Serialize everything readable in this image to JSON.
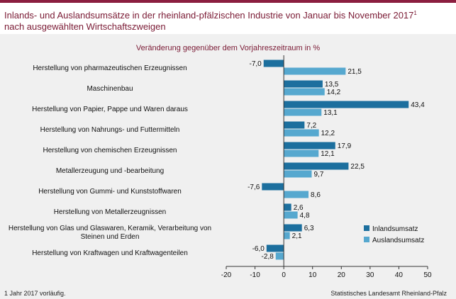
{
  "title_line1": "Inlands- und Auslandsumsätze in der rheinland-pfälzischen Industrie von Januar bis November 2017",
  "title_sup": "1",
  "title_line2": "nach ausgewählten Wirtschaftszweigen",
  "footnote": "1 Jahr 2017 vorläufig.",
  "source": "Statistisches Landesamt Rheinland-Pfalz",
  "colors": {
    "inland": "#1c6f9e",
    "ausland": "#56a8cf",
    "accent": "#8b1e3f",
    "background": "#f0f0f0"
  },
  "chart_data": {
    "type": "bar",
    "orientation": "horizontal",
    "title": "Veränderung gegenüber dem Vorjahreszeitraum in %",
    "categories": [
      "Herstellung von pharmazeutischen Erzeugnissen",
      "Maschinenbau",
      "Herstellung von Papier, Pappe und Waren daraus",
      "Herstellung von Nahrungs- und Futtermitteln",
      "Herstellung von chemischen Erzeugnissen",
      "Metallerzeugung und -bearbeitung",
      "Herstellung von Gummi- und Kunststoffwaren",
      "Herstellung von Metallerzeugnissen",
      "Herstellung von Glas und Glaswaren, Keramik, Verarbeitung von Steinen und Erden",
      "Herstellung von Kraftwagen und Kraftwagenteilen"
    ],
    "series": [
      {
        "name": "Inlandsumsatz",
        "values": [
          -7.0,
          13.5,
          43.4,
          7.2,
          17.9,
          22.5,
          -7.6,
          2.6,
          6.3,
          -6.0
        ],
        "labels": [
          "-7,0",
          "13,5",
          "43,4",
          "7,2",
          "17,9",
          "22,5",
          "-7,6",
          "2,6",
          "6,3",
          "-6,0"
        ]
      },
      {
        "name": "Auslandsumsatz",
        "values": [
          21.5,
          14.2,
          13.1,
          12.2,
          12.1,
          9.7,
          8.6,
          4.8,
          2.1,
          -2.8
        ],
        "labels": [
          "21,5",
          "14,2",
          "13,1",
          "12,2",
          "12,1",
          "9,7",
          "8,6",
          "4,8",
          "2,1",
          "-2,8"
        ]
      }
    ],
    "xlim": [
      -20,
      50
    ],
    "xticks": [
      -20,
      -10,
      0,
      10,
      20,
      30,
      40,
      50
    ],
    "xtick_labels": [
      "-20",
      "-10",
      "0",
      "10",
      "20",
      "30",
      "40",
      "50"
    ],
    "grid": false,
    "legend": "bottom-right"
  }
}
